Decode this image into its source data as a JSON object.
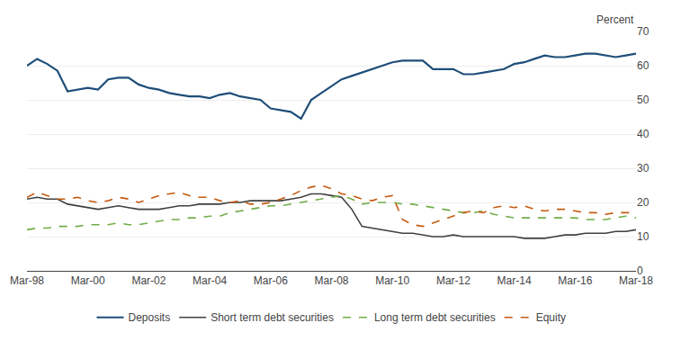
{
  "chart_data": {
    "type": "line",
    "ylabel": "Percent",
    "categories": [
      "Mar-98",
      null,
      null,
      null,
      null,
      null,
      "Mar-00",
      null,
      null,
      null,
      null,
      null,
      "Mar-02",
      null,
      null,
      null,
      null,
      null,
      "Mar-04",
      null,
      null,
      null,
      null,
      null,
      "Mar-06",
      null,
      null,
      null,
      null,
      null,
      "Mar-08",
      null,
      null,
      null,
      null,
      null,
      "Mar-10",
      null,
      null,
      null,
      null,
      null,
      "Mar-12",
      null,
      null,
      null,
      null,
      null,
      "Mar-14",
      null,
      null,
      null,
      null,
      null,
      "Mar-16",
      null,
      null,
      null,
      null,
      null,
      "Mar-18"
    ],
    "series": [
      {
        "name": "Deposits",
        "color": "#1f4e79",
        "line_style": "solid",
        "values": [
          60.0,
          62.0,
          60.5,
          58.5,
          52.5,
          53.0,
          53.5,
          53.0,
          56.0,
          56.5,
          56.5,
          54.5,
          53.5,
          53.0,
          52.0,
          51.5,
          51.0,
          51.0,
          50.5,
          51.5,
          52.0,
          51.0,
          50.5,
          50.0,
          47.5,
          47.0,
          46.5,
          44.5,
          50.0,
          52.0,
          54.0,
          56.0,
          57.0,
          58.0,
          59.0,
          60.0,
          61.0,
          61.5,
          61.5,
          61.5,
          59.0,
          59.0,
          59.0,
          57.5,
          57.5,
          58.0,
          58.5,
          59.0,
          60.5,
          61.0,
          62.0,
          63.0,
          62.5,
          62.5,
          63.0,
          63.5,
          63.5,
          63.0,
          62.5,
          63.0,
          63.5
        ]
      },
      {
        "name": "Short term debt securities",
        "color": "#404040",
        "line_style": "solid",
        "values": [
          21.0,
          21.5,
          21.0,
          21.0,
          19.5,
          19.0,
          18.5,
          18.0,
          18.5,
          19.0,
          18.5,
          18.0,
          18.0,
          18.0,
          18.5,
          19.0,
          19.0,
          19.5,
          19.5,
          19.5,
          20.0,
          20.0,
          20.5,
          20.5,
          20.5,
          20.5,
          21.0,
          21.5,
          22.5,
          22.5,
          22.0,
          21.5,
          18.0,
          13.0,
          12.5,
          12.0,
          11.5,
          11.0,
          11.0,
          10.5,
          10.0,
          10.0,
          10.5,
          10.0,
          10.0,
          10.0,
          10.0,
          10.0,
          10.0,
          9.5,
          9.5,
          9.5,
          10.0,
          10.5,
          10.5,
          11.0,
          11.0,
          11.0,
          11.5,
          11.5,
          12.0
        ]
      },
      {
        "name": "Long term debt securities",
        "color": "#70ad47",
        "line_style": "dashed",
        "values": [
          12.0,
          12.5,
          12.5,
          13.0,
          13.0,
          13.0,
          13.5,
          13.5,
          13.5,
          14.0,
          13.5,
          13.5,
          14.0,
          14.5,
          15.0,
          15.0,
          15.5,
          15.5,
          16.0,
          16.0,
          17.0,
          17.5,
          18.0,
          18.5,
          19.0,
          19.0,
          19.5,
          20.0,
          20.5,
          21.0,
          21.5,
          22.0,
          21.0,
          19.5,
          20.0,
          20.0,
          20.0,
          19.5,
          19.5,
          19.0,
          18.5,
          18.0,
          17.5,
          17.0,
          17.0,
          17.5,
          16.5,
          16.0,
          15.5,
          15.5,
          15.5,
          15.5,
          15.5,
          15.5,
          15.5,
          15.0,
          15.0,
          15.0,
          15.5,
          16.0,
          15.5
        ]
      },
      {
        "name": "Equity",
        "color": "#c55a11",
        "line_style": "dashed",
        "values": [
          21.5,
          23.0,
          22.0,
          21.0,
          21.0,
          21.5,
          20.5,
          20.0,
          20.5,
          21.5,
          21.0,
          20.0,
          21.0,
          22.0,
          22.5,
          23.0,
          22.0,
          21.5,
          21.5,
          20.5,
          20.0,
          20.5,
          19.5,
          19.5,
          20.0,
          21.0,
          22.0,
          23.5,
          24.5,
          25.0,
          24.0,
          22.5,
          22.0,
          21.0,
          20.5,
          21.5,
          22.0,
          15.0,
          13.5,
          13.0,
          14.0,
          15.0,
          16.0,
          17.0,
          17.5,
          17.0,
          18.5,
          19.0,
          18.5,
          19.0,
          18.0,
          17.5,
          18.0,
          18.0,
          17.5,
          17.0,
          17.0,
          16.5,
          17.0,
          17.0,
          17.0
        ]
      }
    ],
    "ylim": [
      0,
      70
    ],
    "yticks": [
      0,
      10,
      20,
      30,
      40,
      50,
      60,
      70
    ],
    "grid": true,
    "legend": "bottom"
  }
}
